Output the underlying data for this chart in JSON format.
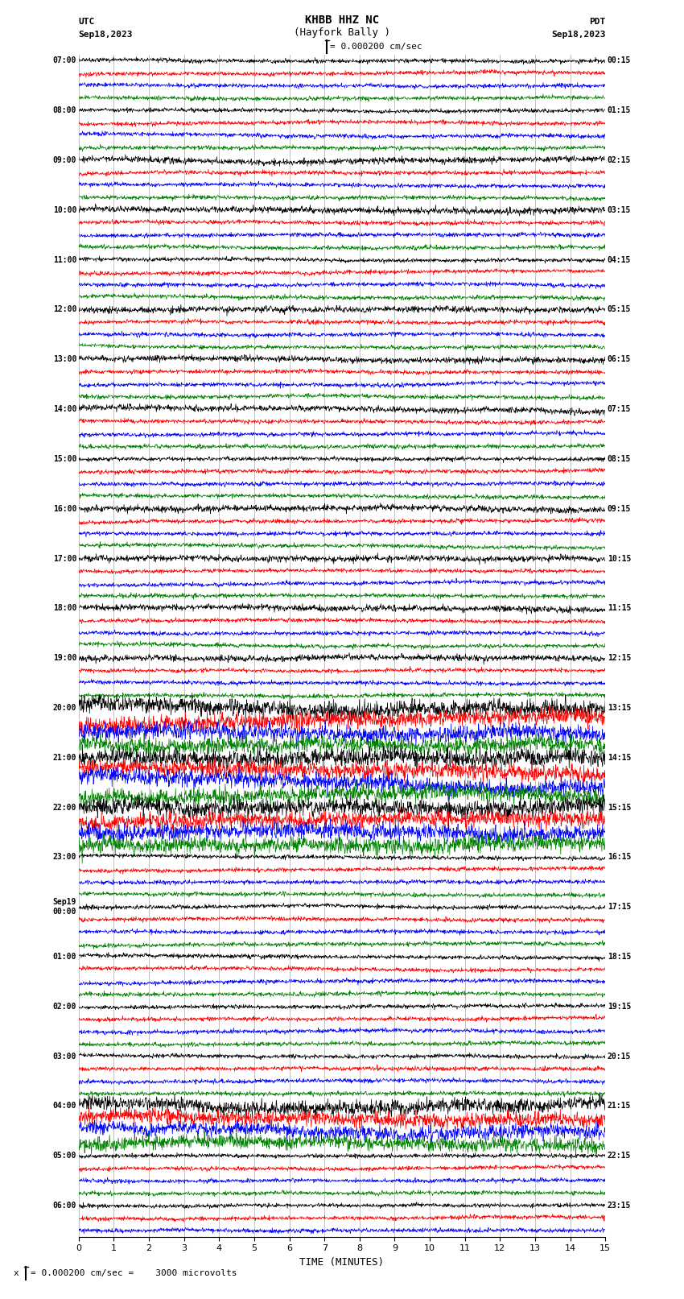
{
  "title_line1": "KHBB HHZ NC",
  "title_line2": "(Hayfork Bally )",
  "scale_text": "= 0.000200 cm/sec",
  "scale_text_bottom": "= 0.000200 cm/sec =    3000 microvolts",
  "utc_label": "UTC",
  "pdt_label": "PDT",
  "date_left": "Sep18,2023",
  "date_right": "Sep18,2023",
  "xlabel": "TIME (MINUTES)",
  "xmin": 0,
  "xmax": 15,
  "xticks": [
    0,
    1,
    2,
    3,
    4,
    5,
    6,
    7,
    8,
    9,
    10,
    11,
    12,
    13,
    14,
    15
  ],
  "background_color": "#ffffff",
  "colors": [
    "black",
    "red",
    "blue",
    "green"
  ],
  "figsize": [
    8.5,
    16.13
  ],
  "dpi": 100,
  "left_times_utc": [
    "07:00",
    "",
    "",
    "",
    "08:00",
    "",
    "",
    "",
    "09:00",
    "",
    "",
    "",
    "10:00",
    "",
    "",
    "",
    "11:00",
    "",
    "",
    "",
    "12:00",
    "",
    "",
    "",
    "13:00",
    "",
    "",
    "",
    "14:00",
    "",
    "",
    "",
    "15:00",
    "",
    "",
    "",
    "16:00",
    "",
    "",
    "",
    "17:00",
    "",
    "",
    "",
    "18:00",
    "",
    "",
    "",
    "19:00",
    "",
    "",
    "",
    "20:00",
    "",
    "",
    "",
    "21:00",
    "",
    "",
    "",
    "22:00",
    "",
    "",
    "",
    "23:00",
    "",
    "",
    "",
    "Sep19\n00:00",
    "",
    "",
    "",
    "01:00",
    "",
    "",
    "",
    "02:00",
    "",
    "",
    "",
    "03:00",
    "",
    "",
    "",
    "04:00",
    "",
    "",
    "",
    "05:00",
    "",
    "",
    "",
    "06:00",
    "",
    ""
  ],
  "right_times_pdt": [
    "00:15",
    "",
    "",
    "",
    "01:15",
    "",
    "",
    "",
    "02:15",
    "",
    "",
    "",
    "03:15",
    "",
    "",
    "",
    "04:15",
    "",
    "",
    "",
    "05:15",
    "",
    "",
    "",
    "06:15",
    "",
    "",
    "",
    "07:15",
    "",
    "",
    "",
    "08:15",
    "",
    "",
    "",
    "09:15",
    "",
    "",
    "",
    "10:15",
    "",
    "",
    "",
    "11:15",
    "",
    "",
    "",
    "12:15",
    "",
    "",
    "",
    "13:15",
    "",
    "",
    "",
    "14:15",
    "",
    "",
    "",
    "15:15",
    "",
    "",
    "",
    "16:15",
    "",
    "",
    "",
    "17:15",
    "",
    "",
    "",
    "18:15",
    "",
    "",
    "",
    "19:15",
    "",
    "",
    "",
    "20:15",
    "",
    "",
    "",
    "21:15",
    "",
    "",
    "",
    "22:15",
    "",
    "",
    "",
    "23:15",
    "",
    ""
  ],
  "noise_amp": 0.08,
  "lf_scale": 0.05,
  "n_points": 1500
}
